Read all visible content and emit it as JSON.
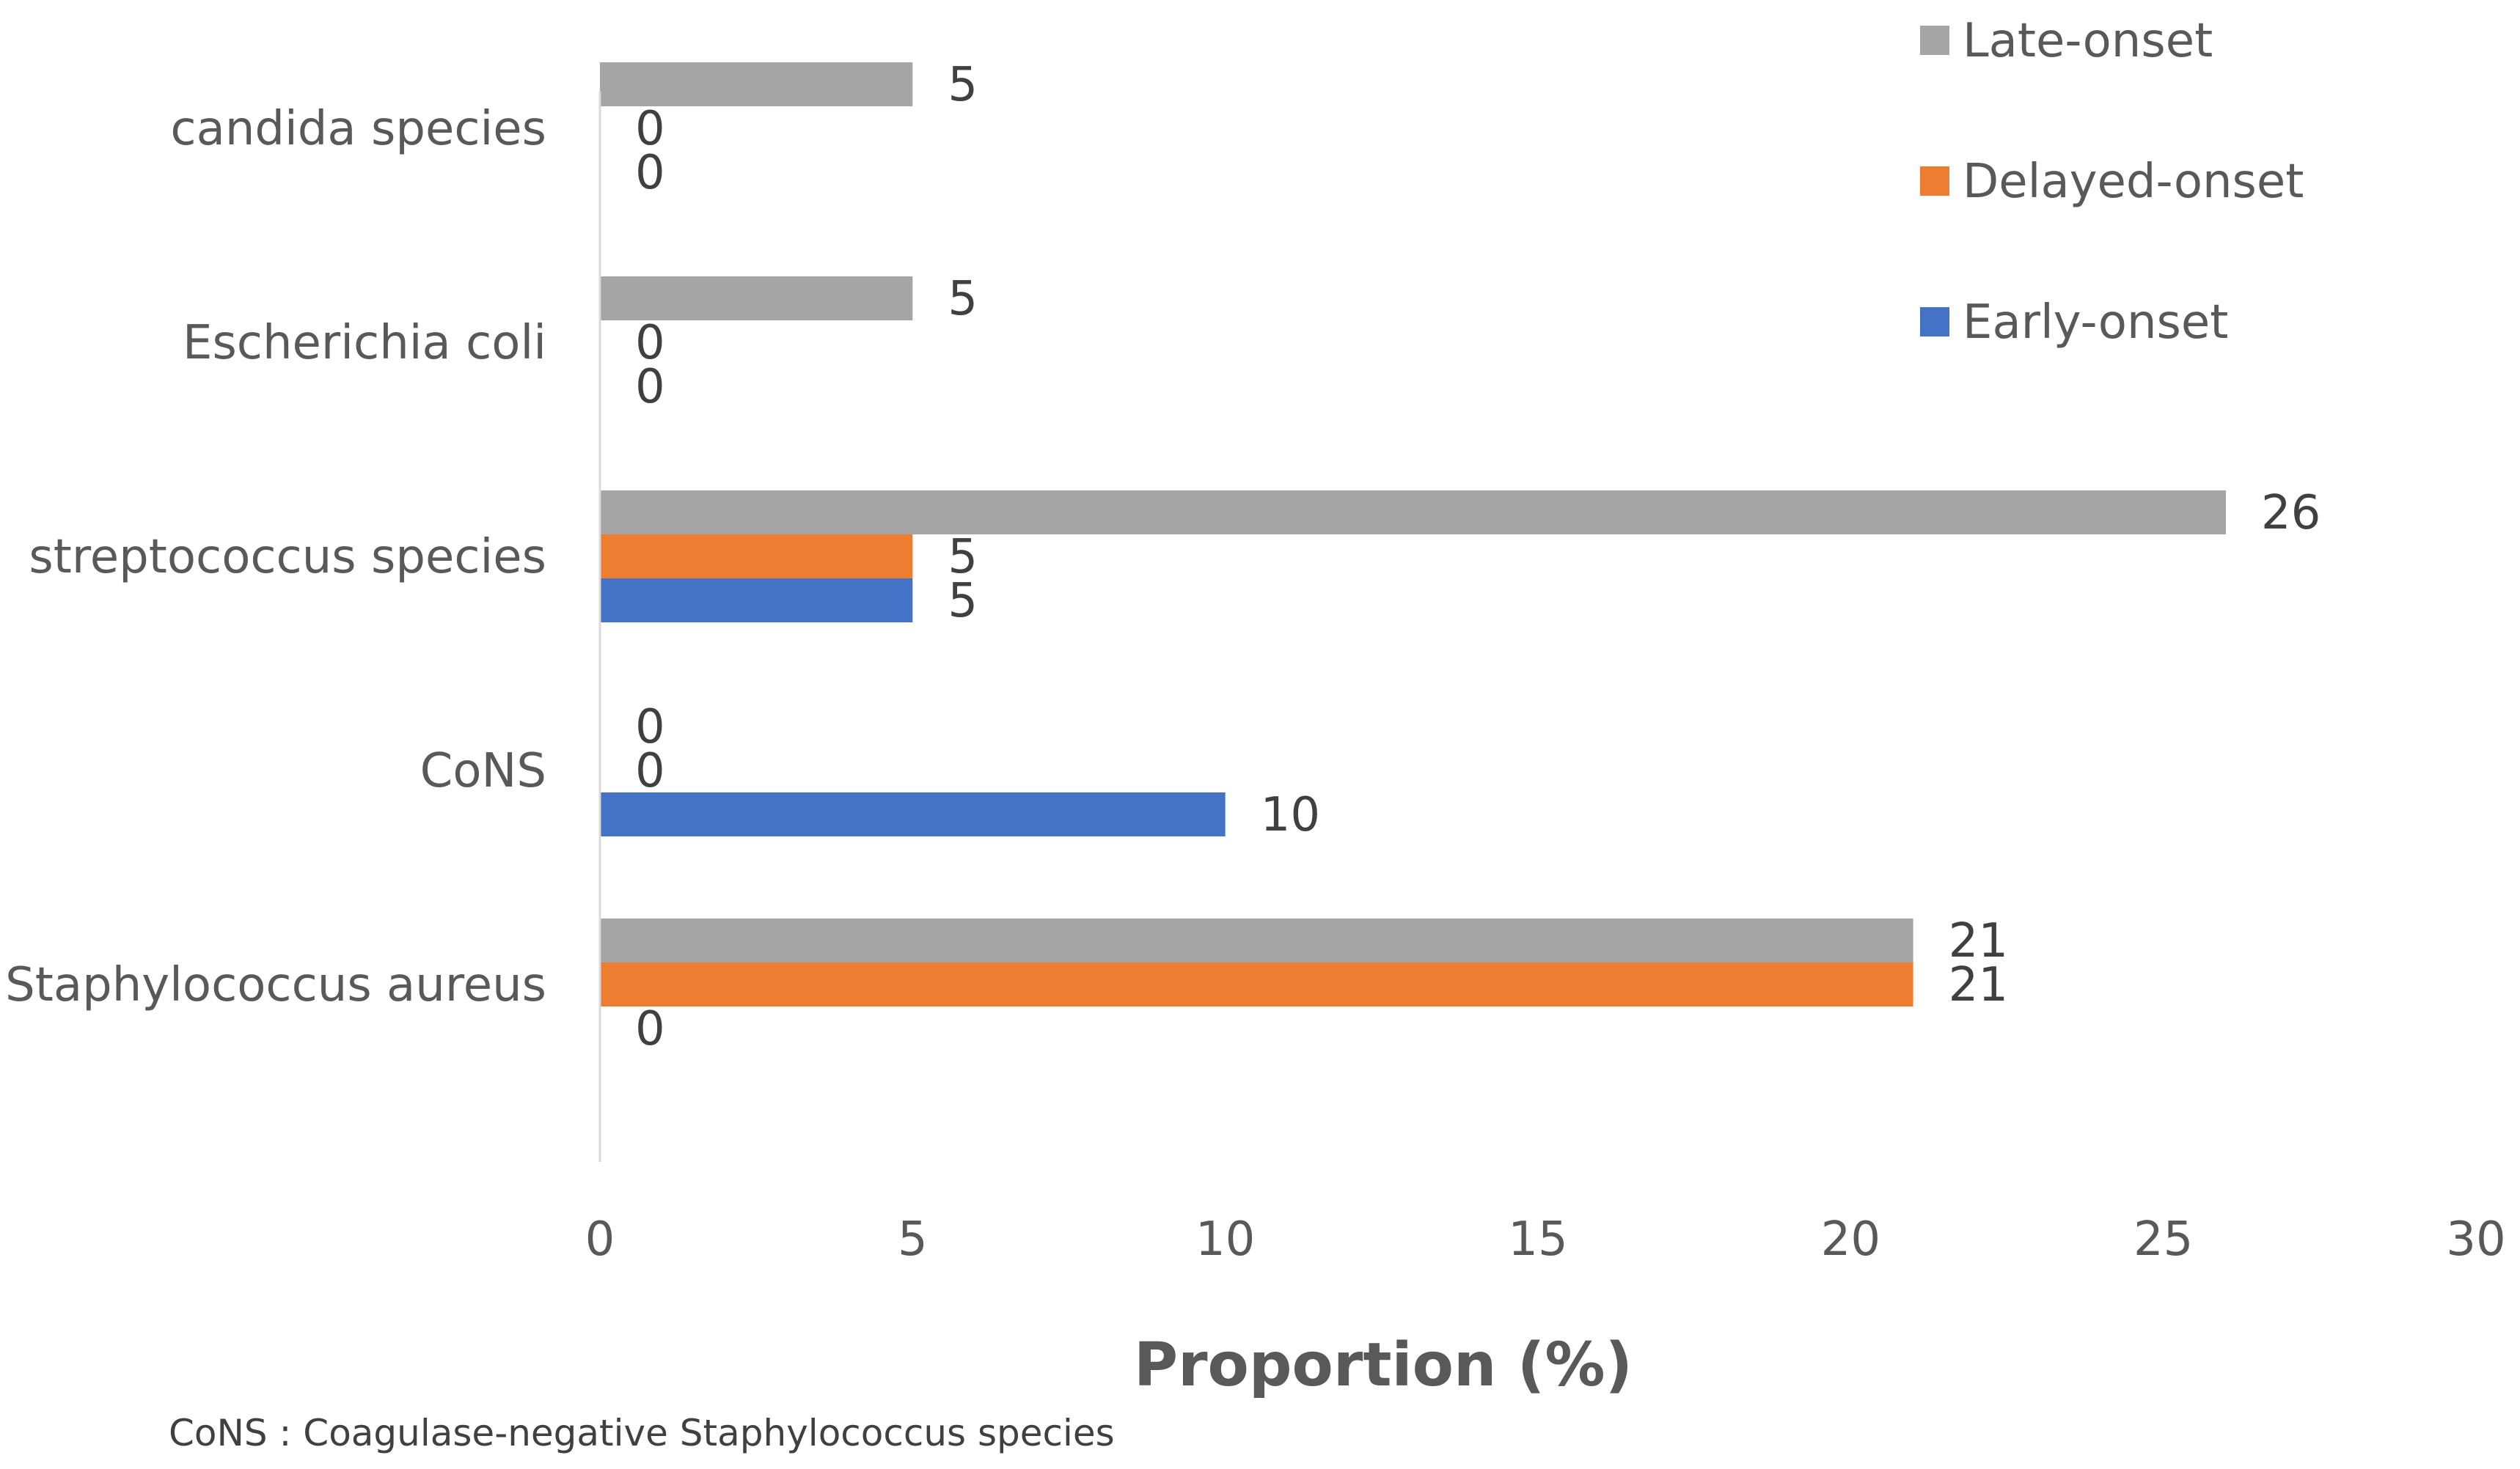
{
  "chart_data": {
    "type": "bar",
    "orientation": "horizontal",
    "title": "",
    "xlabel": "Proportion (%)",
    "ylabel": "",
    "xlim": [
      0,
      30
    ],
    "xticks": [
      0,
      5,
      10,
      15,
      20,
      25,
      30
    ],
    "grid": false,
    "legend_position": "top-right",
    "categories": [
      "candida species",
      "Escherichia coli",
      "streptococcus species",
      "CoNS",
      "Staphylococcus aureus"
    ],
    "series": [
      {
        "name": "Late-onset",
        "color": "#A5A5A5",
        "values": [
          5,
          5,
          26,
          0,
          21
        ]
      },
      {
        "name": "Delayed-onset",
        "color": "#ED7D31",
        "values": [
          0,
          0,
          5,
          0,
          21
        ]
      },
      {
        "name": "Early-onset",
        "color": "#4472C4",
        "values": [
          0,
          0,
          5,
          10,
          0
        ]
      }
    ],
    "footnote": "CoNS : Coagulase-negative Staphylococcus species"
  }
}
